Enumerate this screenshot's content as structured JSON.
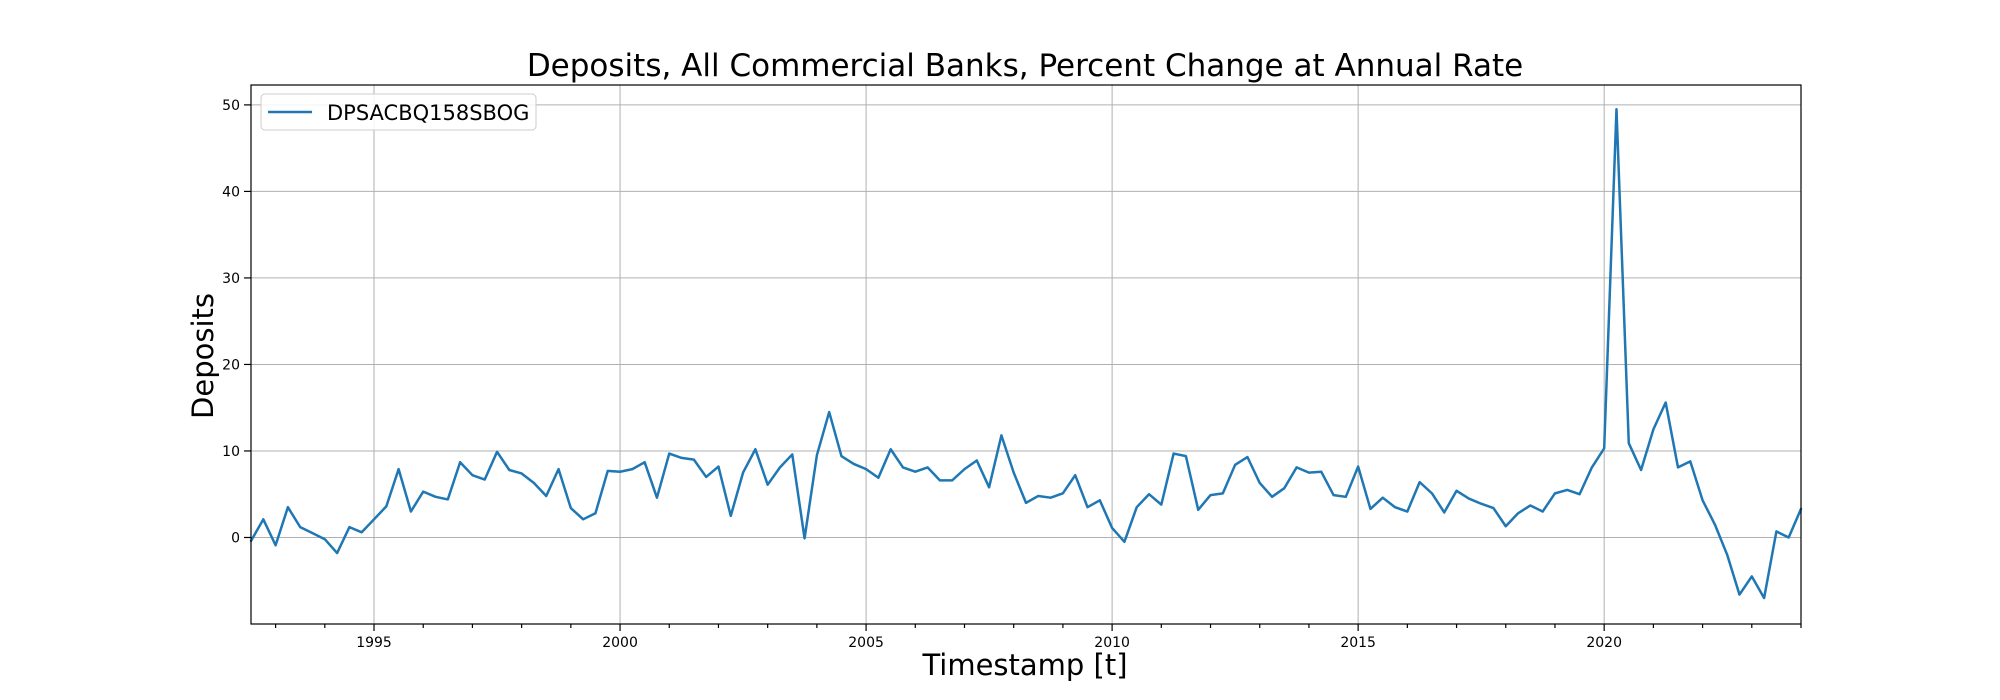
{
  "chart_data": {
    "type": "line",
    "title": "Deposits, All Commercial Banks, Percent Change at Annual Rate",
    "xlabel": "Timestamp [t]",
    "ylabel": "Deposits",
    "xlim": [
      "1992-07-01",
      "2024-01-01"
    ],
    "ylim": [
      -10,
      52.3
    ],
    "x_ticks": [
      "1995",
      "2000",
      "2005",
      "2010",
      "2015",
      "2020"
    ],
    "y_ticks": [
      0,
      10,
      20,
      30,
      40,
      50
    ],
    "grid": true,
    "legend_position": "top-left",
    "line_color": "#1f77b4",
    "series": [
      {
        "name": "DPSACBQ158SBOG",
        "x": [
          "1992-07-01",
          "1992-10-01",
          "1993-01-01",
          "1993-04-01",
          "1993-07-01",
          "1993-10-01",
          "1994-01-01",
          "1994-04-01",
          "1994-07-01",
          "1994-10-01",
          "1995-01-01",
          "1995-04-01",
          "1995-07-01",
          "1995-10-01",
          "1996-01-01",
          "1996-04-01",
          "1996-07-01",
          "1996-10-01",
          "1997-01-01",
          "1997-04-01",
          "1997-07-01",
          "1997-10-01",
          "1998-01-01",
          "1998-04-01",
          "1998-07-01",
          "1998-10-01",
          "1999-01-01",
          "1999-04-01",
          "1999-07-01",
          "1999-10-01",
          "2000-01-01",
          "2000-04-01",
          "2000-07-01",
          "2000-10-01",
          "2001-01-01",
          "2001-04-01",
          "2001-07-01",
          "2001-10-01",
          "2002-01-01",
          "2002-04-01",
          "2002-07-01",
          "2002-10-01",
          "2003-01-01",
          "2003-04-01",
          "2003-07-01",
          "2003-10-01",
          "2004-01-01",
          "2004-04-01",
          "2004-07-01",
          "2004-10-01",
          "2005-01-01",
          "2005-04-01",
          "2005-07-01",
          "2005-10-01",
          "2006-01-01",
          "2006-04-01",
          "2006-07-01",
          "2006-10-01",
          "2007-01-01",
          "2007-04-01",
          "2007-07-01",
          "2007-10-01",
          "2008-01-01",
          "2008-04-01",
          "2008-07-01",
          "2008-10-01",
          "2009-01-01",
          "2009-04-01",
          "2009-07-01",
          "2009-10-01",
          "2010-01-01",
          "2010-04-01",
          "2010-07-01",
          "2010-10-01",
          "2011-01-01",
          "2011-04-01",
          "2011-07-01",
          "2011-10-01",
          "2012-01-01",
          "2012-04-01",
          "2012-07-01",
          "2012-10-01",
          "2013-01-01",
          "2013-04-01",
          "2013-07-01",
          "2013-10-01",
          "2014-01-01",
          "2014-04-01",
          "2014-07-01",
          "2014-10-01",
          "2015-01-01",
          "2015-04-01",
          "2015-07-01",
          "2015-10-01",
          "2016-01-01",
          "2016-04-01",
          "2016-07-01",
          "2016-10-01",
          "2017-01-01",
          "2017-04-01",
          "2017-07-01",
          "2017-10-01",
          "2018-01-01",
          "2018-04-01",
          "2018-07-01",
          "2018-10-01",
          "2019-01-01",
          "2019-04-01",
          "2019-07-01",
          "2019-10-01",
          "2020-01-01",
          "2020-04-01",
          "2020-07-01",
          "2020-10-01",
          "2021-01-01",
          "2021-04-01",
          "2021-07-01",
          "2021-10-01",
          "2022-01-01",
          "2022-04-01",
          "2022-07-01",
          "2022-10-01",
          "2023-01-01",
          "2023-04-01",
          "2023-07-01",
          "2023-10-01",
          "2024-01-01"
        ],
        "values": [
          -0.4,
          2.1,
          -0.9,
          3.5,
          1.2,
          0.5,
          -0.2,
          -1.8,
          1.2,
          0.6,
          2.1,
          3.6,
          7.9,
          3.0,
          5.3,
          4.7,
          4.4,
          8.7,
          7.2,
          6.7,
          9.9,
          7.8,
          7.4,
          6.3,
          4.8,
          7.9,
          3.4,
          2.1,
          2.8,
          7.7,
          7.6,
          7.9,
          8.7,
          4.6,
          9.7,
          9.2,
          9.0,
          7.0,
          8.2,
          2.5,
          7.5,
          10.2,
          6.1,
          8.1,
          9.6,
          -0.1,
          9.5,
          14.5,
          9.4,
          8.5,
          7.9,
          6.9,
          10.2,
          8.1,
          7.6,
          8.1,
          6.6,
          6.6,
          7.9,
          8.9,
          5.8,
          11.8,
          7.5,
          4.0,
          4.8,
          4.6,
          5.1,
          7.2,
          3.5,
          4.3,
          1.1,
          -0.5,
          3.5,
          5.0,
          3.8,
          9.7,
          9.4,
          3.2,
          4.9,
          5.1,
          8.4,
          9.3,
          6.3,
          4.7,
          5.7,
          8.1,
          7.5,
          7.6,
          4.9,
          4.7,
          8.2,
          3.3,
          4.6,
          3.5,
          3.0,
          6.4,
          5.1,
          2.9,
          5.4,
          4.5,
          3.9,
          3.4,
          1.3,
          2.8,
          3.7,
          3.0,
          5.1,
          5.5,
          5.0,
          8.1,
          10.3,
          49.5,
          10.9,
          7.8,
          12.5,
          15.6,
          8.1,
          8.8,
          4.3,
          1.5,
          -2.0,
          -6.6,
          -4.5,
          -7.0,
          0.7,
          0.0,
          3.3
        ]
      }
    ]
  }
}
